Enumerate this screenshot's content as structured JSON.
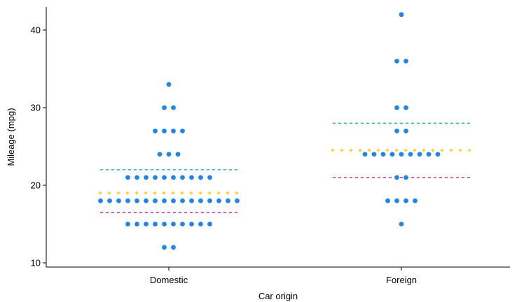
{
  "chart_data": {
    "type": "scatter",
    "subtype": "dot-strip (stripplot) with quartile markers",
    "xlabel": "Car origin",
    "ylabel": "Mileage (mpg)",
    "categories": [
      "Domestic",
      "Foreign"
    ],
    "ylim": [
      9.5,
      42.5
    ],
    "yticks": [
      10,
      20,
      30,
      40
    ],
    "grid": false,
    "legend": "none",
    "colors": {
      "points": "#1f86e9",
      "median": "#f2c400",
      "upper_quartile": "#16b28a",
      "lower_quartile": "#d4135b"
    },
    "series": [
      {
        "category": "Domestic",
        "points": [
          {
            "y": 12,
            "count": 2
          },
          {
            "y": 15,
            "count": 10
          },
          {
            "y": 18,
            "count": 16
          },
          {
            "y": 21,
            "count": 10
          },
          {
            "y": 24,
            "count": 3
          },
          {
            "y": 27,
            "count": 4
          },
          {
            "y": 30,
            "count": 2
          },
          {
            "y": 33,
            "count": 1
          }
        ],
        "lower_quartile": 16.5,
        "median": 19,
        "upper_quartile": 22
      },
      {
        "category": "Foreign",
        "points": [
          {
            "y": 15,
            "count": 1
          },
          {
            "y": 18,
            "count": 4
          },
          {
            "y": 21,
            "count": 2
          },
          {
            "y": 24,
            "count": 9
          },
          {
            "y": 27,
            "count": 2
          },
          {
            "y": 30,
            "count": 2
          },
          {
            "y": 36,
            "count": 2
          },
          {
            "y": 42,
            "count": 1
          }
        ],
        "lower_quartile": 21,
        "median": 24.5,
        "upper_quartile": 28
      }
    ]
  }
}
